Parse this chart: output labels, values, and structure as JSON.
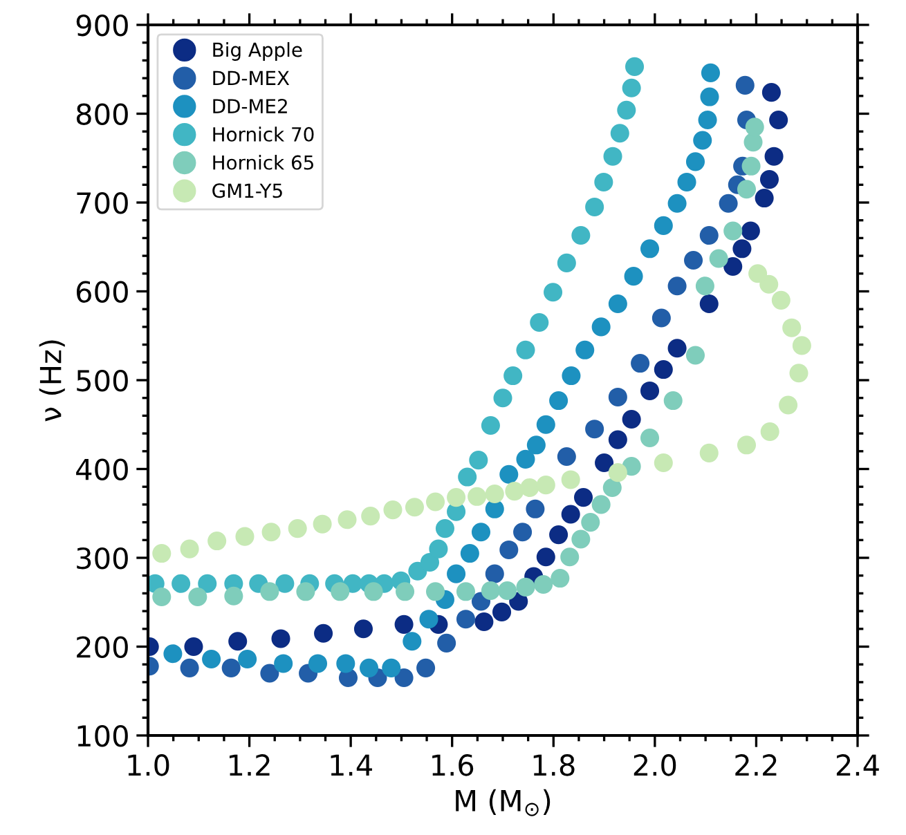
{
  "chart_data": {
    "type": "scatter",
    "xlabel": "M (M$_{⊙}$)",
    "ylabel": "ν (Hz)",
    "xlim": [
      1.0,
      2.4
    ],
    "xticks": [
      {
        "value": 1.0,
        "label": "1.0"
      },
      {
        "value": 1.2,
        "label": "1.2"
      },
      {
        "value": 1.4,
        "label": "1.4"
      },
      {
        "value": 1.6,
        "label": "1.6"
      },
      {
        "value": 1.8,
        "label": "1.8"
      },
      {
        "value": 2.0,
        "label": "2.0"
      },
      {
        "value": 2.2,
        "label": "2.2"
      },
      {
        "value": 2.4,
        "label": "2.4"
      }
    ],
    "ylim": [
      100,
      900
    ],
    "yticks": [
      100,
      200,
      300,
      400,
      500,
      600,
      700,
      800,
      900
    ],
    "legend": "top left",
    "marker": "circle",
    "grid": false,
    "series": [
      {
        "name": "Big Apple",
        "color": "#0c2c84",
        "x": [
          1.003,
          1.09,
          1.177,
          1.262,
          1.346,
          1.425,
          1.505,
          1.573,
          1.616,
          1.663,
          1.698,
          1.731,
          1.761,
          1.785,
          1.81,
          1.834,
          1.859,
          1.9,
          1.927,
          1.954,
          1.99,
          2.017,
          2.044,
          2.107,
          2.154,
          2.172,
          2.189,
          2.216,
          2.226,
          2.235,
          2.244,
          2.23
        ],
        "values": [
          200,
          200,
          206,
          209,
          215,
          220,
          225,
          225,
          null,
          228,
          239,
          251,
          279,
          301,
          326,
          349,
          368,
          407,
          433,
          456,
          488,
          512,
          536,
          586,
          628,
          648,
          668,
          705,
          726,
          752,
          793,
          824
        ]
      },
      {
        "name": "DD-MEX",
        "color": "#225ea8",
        "x": [
          1.003,
          1.082,
          1.164,
          1.24,
          1.316,
          1.395,
          1.453,
          1.505,
          1.548,
          1.589,
          1.627,
          1.657,
          1.684,
          1.712,
          1.739,
          1.764,
          1.79,
          1.826,
          1.881,
          1.927,
          1.971,
          2.013,
          2.044,
          2.076,
          2.107,
          2.145,
          2.163,
          2.173,
          2.181,
          2.178
        ],
        "values": [
          178,
          176,
          176,
          170,
          170,
          165,
          165,
          165,
          176,
          204,
          231,
          251,
          282,
          309,
          329,
          355,
          null,
          414,
          445,
          481,
          519,
          570,
          606,
          635,
          663,
          699,
          720,
          741,
          793,
          832
        ]
      },
      {
        "name": "DD-ME2",
        "color": "#1d91c0",
        "x": [
          1.049,
          1.125,
          1.196,
          1.267,
          1.335,
          1.39,
          1.436,
          1.48,
          1.521,
          1.554,
          1.586,
          1.608,
          1.635,
          1.657,
          1.684,
          1.712,
          1.745,
          1.766,
          1.785,
          1.81,
          1.835,
          1.862,
          1.894,
          1.927,
          1.958,
          1.99,
          2.017,
          2.044,
          2.063,
          2.08,
          2.094,
          2.104,
          2.108,
          2.11
        ],
        "values": [
          192,
          186,
          186,
          181,
          181,
          181,
          176,
          176,
          206,
          231,
          253,
          282,
          305,
          329,
          355,
          394,
          411,
          427,
          450,
          477,
          505,
          534,
          560,
          586,
          617,
          648,
          674,
          699,
          723,
          746,
          770,
          793,
          819,
          846
        ]
      },
      {
        "name": "Hornick 70",
        "color": "#41b6c4",
        "x": [
          1.014,
          1.065,
          1.117,
          1.169,
          1.218,
          1.27,
          1.319,
          1.368,
          1.404,
          1.436,
          1.466,
          1.499,
          1.532,
          1.556,
          1.573,
          1.586,
          1.608,
          1.63,
          1.652,
          1.676,
          1.7,
          1.72,
          1.745,
          1.772,
          1.799,
          1.826,
          1.854,
          1.881,
          1.899,
          1.917,
          1.931,
          1.944,
          1.954,
          1.96
        ],
        "values": [
          271,
          271,
          271,
          271,
          271,
          271,
          271,
          271,
          271,
          271,
          271,
          274,
          285,
          295,
          310,
          333,
          352,
          391,
          410,
          449,
          480,
          505,
          534,
          565,
          599,
          632,
          663,
          695,
          723,
          752,
          778,
          804,
          829,
          853
        ]
      },
      {
        "name": "Hornick 65",
        "color": "#7fcdbb",
        "x": [
          1.027,
          1.098,
          1.169,
          1.24,
          1.311,
          1.379,
          1.445,
          1.507,
          1.567,
          1.627,
          1.676,
          1.709,
          1.745,
          1.78,
          1.813,
          1.832,
          1.854,
          1.873,
          1.894,
          1.916,
          1.954,
          1.99,
          2.036,
          2.08,
          2.099,
          2.126,
          2.154,
          2.181,
          2.19,
          2.194,
          2.197
        ],
        "values": [
          256,
          256,
          257,
          262,
          262,
          262,
          262,
          262,
          262,
          262,
          263,
          263,
          267,
          270,
          277,
          301,
          321,
          340,
          360,
          379,
          403,
          435,
          477,
          528,
          606,
          637,
          668,
          715,
          741,
          768,
          785
        ]
      },
      {
        "name": "GM1-Y5",
        "color": "#c7e9b4",
        "x": [
          1.027,
          1.082,
          1.136,
          1.191,
          1.243,
          1.295,
          1.344,
          1.393,
          1.439,
          1.483,
          1.526,
          1.567,
          1.608,
          1.649,
          1.684,
          1.723,
          1.753,
          1.785,
          1.834,
          1.927,
          2.017,
          2.107,
          2.181,
          2.227,
          2.263,
          2.284,
          2.29,
          2.27,
          2.249,
          2.225,
          2.203
        ],
        "values": [
          305,
          310,
          319,
          324,
          329,
          333,
          338,
          343,
          347,
          354,
          357,
          363,
          368,
          369,
          372,
          375,
          379,
          382,
          388,
          396,
          407,
          418,
          427,
          442,
          472,
          508,
          539,
          559,
          590,
          608,
          620
        ]
      }
    ]
  }
}
